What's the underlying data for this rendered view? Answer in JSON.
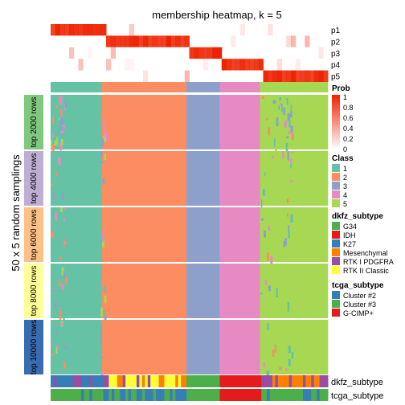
{
  "chart_data": {
    "type": "heatmap",
    "title": "membership heatmap, k = 5",
    "ylabel": "50 x 5 random samplings",
    "membership_rows": [
      "p1",
      "p2",
      "p3",
      "p4",
      "p5"
    ],
    "row_groups": [
      "top 2000 rows",
      "top 4000 rows",
      "top 6000 rows",
      "top 8000 rows",
      "top 10000 rows"
    ],
    "class_order_left_to_right": [
      "1",
      "2",
      "3",
      "4",
      "5"
    ],
    "class_proportions": [
      0.185,
      0.305,
      0.12,
      0.145,
      0.245
    ],
    "annotation_rows": [
      "dkfz_subtype",
      "tcga_subtype"
    ],
    "legends": {
      "prob": {
        "title": "Prob",
        "ticks": [
          "1",
          "0.8",
          "0.6",
          "0.4",
          "0.2",
          "0"
        ]
      },
      "class": {
        "title": "Class",
        "items": [
          {
            "label": "1",
            "color": "#66C2A5"
          },
          {
            "label": "2",
            "color": "#FC8D62"
          },
          {
            "label": "3",
            "color": "#8DA0CB"
          },
          {
            "label": "4",
            "color": "#E78AC3"
          },
          {
            "label": "5",
            "color": "#A6D854"
          }
        ]
      },
      "dkfz_subtype": {
        "title": "dkfz_subtype",
        "items": [
          {
            "label": "G34",
            "color": "#4DAF4A"
          },
          {
            "label": "IDH",
            "color": "#E41A1C"
          },
          {
            "label": "K27",
            "color": "#377EB8"
          },
          {
            "label": "Mesenchymal",
            "color": "#FF7F00"
          },
          {
            "label": "RTK I PDGFRA",
            "color": "#984EA3"
          },
          {
            "label": "RTK II Classic",
            "color": "#FFFF33"
          }
        ]
      },
      "tcga_subtype": {
        "title": "tcga_subtype",
        "items": [
          {
            "label": "Cluster #2",
            "color": "#377EB8"
          },
          {
            "label": "Cluster #3",
            "color": "#4DAF4A"
          },
          {
            "label": "G-CIMP+",
            "color": "#E41A1C"
          }
        ]
      }
    },
    "row_group_colors": [
      "#7FC97F",
      "#BEAED4",
      "#FDC086",
      "#FFFF99",
      "#386CB0"
    ]
  }
}
